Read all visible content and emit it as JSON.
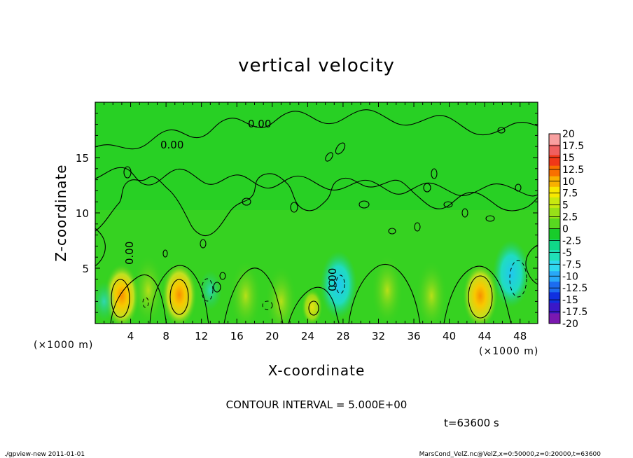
{
  "chart_data": {
    "type": "heatmap",
    "title": "vertical velocity",
    "xlabel": "X-coordinate",
    "ylabel": "Z-coordinate",
    "x_unit": "(×1000 m)",
    "y_unit": "(×1000 m)",
    "xlim": [
      0,
      50
    ],
    "ylim": [
      0,
      20
    ],
    "x_ticks": [
      4,
      8,
      12,
      16,
      20,
      24,
      28,
      32,
      36,
      40,
      44,
      48
    ],
    "y_ticks": [
      5,
      10,
      15
    ],
    "contour_interval_label": "CONTOUR INTERVAL = 5.000E+00",
    "contour_labels": [
      "0.00",
      "0.00",
      "0.00",
      "0.00"
    ],
    "time_label": "t=63600 s",
    "colorbar": {
      "labels": [
        "20",
        "17.5",
        "15",
        "12.5",
        "10",
        "7.5",
        "5",
        "2.5",
        "0",
        "-2.5",
        "-5",
        "-7.5",
        "-10",
        "-12.5",
        "-15",
        "-17.5",
        "-20"
      ],
      "colors": [
        "#7a18b0",
        "#3a18c8",
        "#1030e0",
        "#1c6cf0",
        "#28a8f8",
        "#30d8f0",
        "#20e0b8",
        "#10d888",
        "#18cc2a",
        "#58d820",
        "#98e018",
        "#c8e810",
        "#f8e800",
        "#f8b000",
        "#f87000",
        "#f03818",
        "#f06060",
        "#f8a0a0"
      ]
    },
    "features": [
      {
        "kind": "updraft",
        "x": 3,
        "z": 2.5,
        "value": 7.5
      },
      {
        "kind": "updraft",
        "x": 9.5,
        "z": 2.6,
        "value": 7.5
      },
      {
        "kind": "updraft",
        "x": 24.5,
        "z": 1.5,
        "value": 5
      },
      {
        "kind": "updraft",
        "x": 43.5,
        "z": 2.5,
        "value": 7.5
      },
      {
        "kind": "downdraft",
        "x": 13,
        "z": 3,
        "value": -5
      },
      {
        "kind": "downdraft",
        "x": 27.5,
        "z": 3.5,
        "value": -7.5
      },
      {
        "kind": "downdraft",
        "x": 47,
        "z": 4.5,
        "value": -7.5
      },
      {
        "kind": "downdraft",
        "x": 1,
        "z": 2,
        "value": -5
      }
    ]
  },
  "footer": {
    "left": "./gpview-new  2011-01-01",
    "right": "MarsCond_VelZ.nc@VelZ,x=0:50000,z=0:20000,t=63600"
  }
}
